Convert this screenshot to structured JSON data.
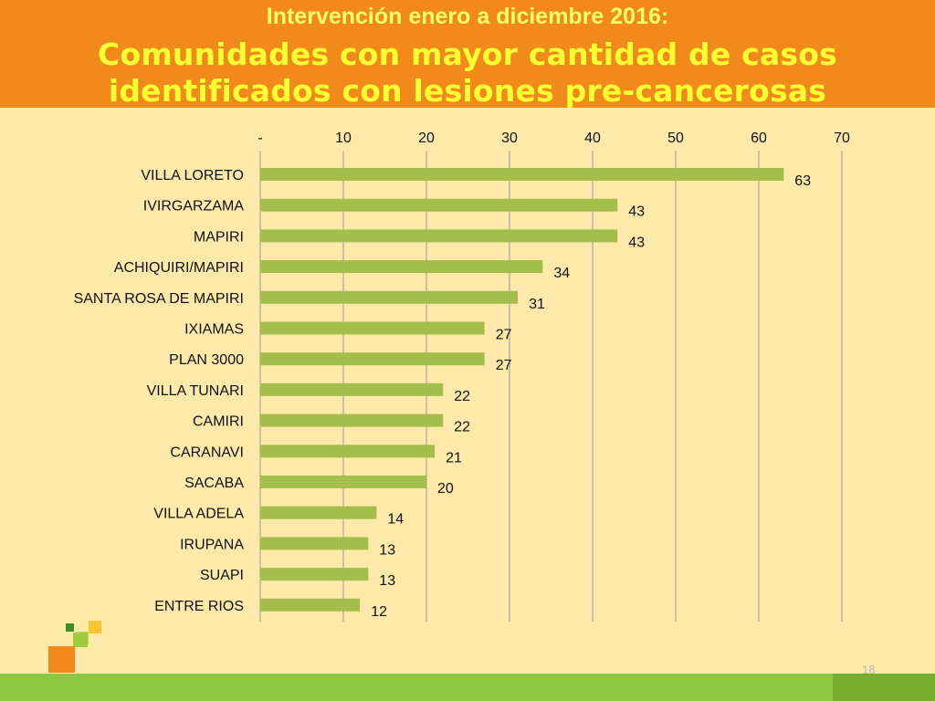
{
  "header": {
    "subtitle": "Intervención enero a diciembre 2016:",
    "title_line1": "Comunidades con mayor cantidad de casos",
    "title_line2": "identificados  con lesiones pre-cancerosas"
  },
  "page_number": "18",
  "colors": {
    "header_bg": "#f18a1a",
    "page_bg": "#fde9a9",
    "bar": "#a5be4b",
    "bottom_bar": "#8dc63f"
  },
  "chart_data": {
    "type": "bar",
    "orientation": "horizontal",
    "categories": [
      "VILLA LORETO",
      "IVIRGARZAMA",
      "MAPIRI",
      "ACHIQUIRI/MAPIRI",
      "SANTA ROSA DE MAPIRI",
      "IXIAMAS",
      "PLAN 3000",
      "VILLA TUNARI",
      "CAMIRI",
      "CARANAVI",
      "SACABA",
      "VILLA ADELA",
      "IRUPANA",
      "SUAPI",
      "ENTRE RIOS"
    ],
    "values": [
      63,
      43,
      43,
      34,
      31,
      27,
      27,
      22,
      22,
      21,
      20,
      14,
      13,
      13,
      12
    ],
    "xlim": [
      0,
      70
    ],
    "x_ticks": [
      0,
      10,
      20,
      30,
      40,
      50,
      60,
      70
    ],
    "x_tick_labels": [
      "-",
      "10",
      "20",
      "30",
      "40",
      "50",
      "60",
      "70"
    ],
    "x_axis_position": "top",
    "grid": "vertical",
    "data_labels": true,
    "legend": "none"
  }
}
